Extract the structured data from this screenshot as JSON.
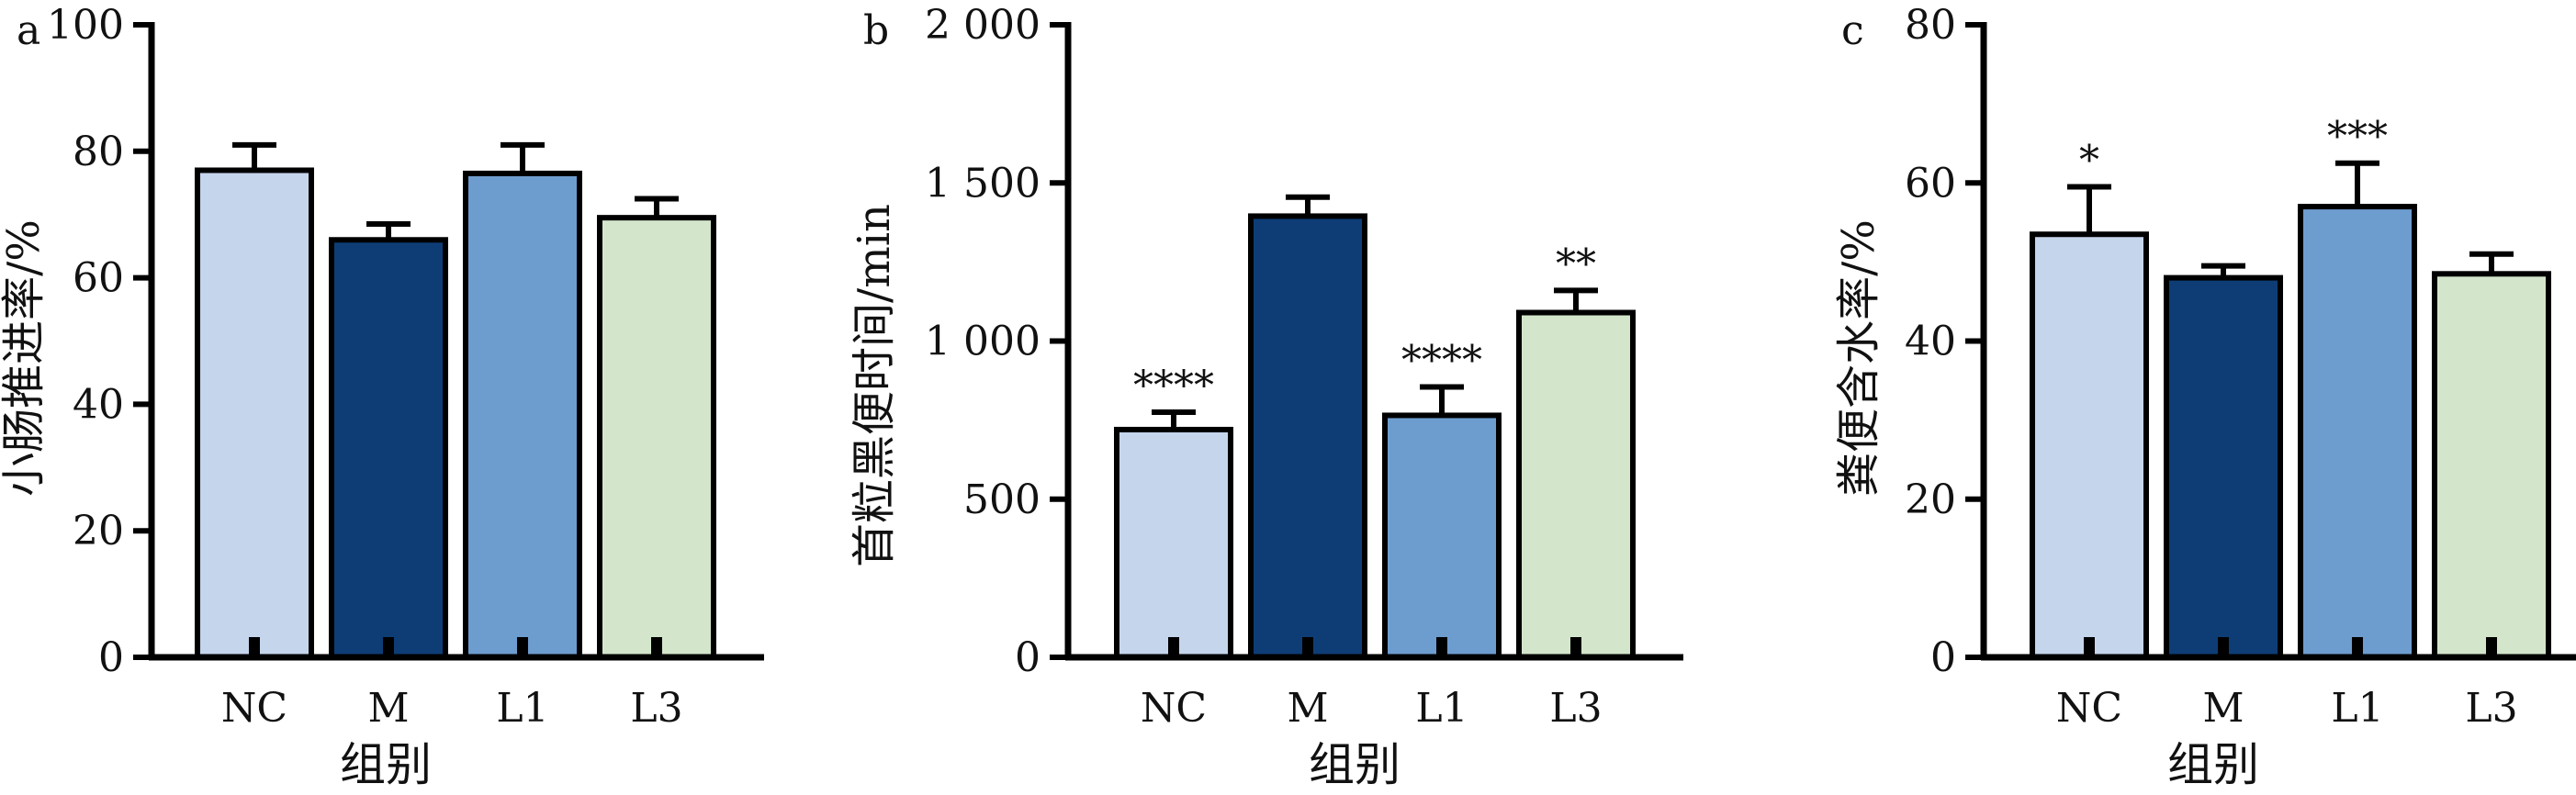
{
  "chart_data": [
    {
      "type": "bar",
      "panel": "a",
      "categories": [
        "NC",
        "M",
        "L1",
        "L3"
      ],
      "values": [
        77,
        66,
        76.5,
        69.5
      ],
      "errors": [
        4,
        2.5,
        4.5,
        3
      ],
      "significance": [
        "",
        "",
        "",
        ""
      ],
      "ylabel": "小肠推进率/%",
      "xlabel": "组别",
      "ylim": [
        0,
        100
      ],
      "yticks": [
        "0",
        "20",
        "40",
        "60",
        "80",
        "100"
      ],
      "ytick_values": [
        0,
        20,
        40,
        60,
        80,
        100
      ],
      "bar_colors": [
        "#c5d5ec",
        "#0e3d76",
        "#6d9ccf",
        "#d3e6cb"
      ]
    },
    {
      "type": "bar",
      "panel": "b",
      "categories": [
        "NC",
        "M",
        "L1",
        "L3"
      ],
      "values": [
        720,
        1395,
        765,
        1090
      ],
      "errors": [
        55,
        60,
        90,
        70
      ],
      "significance": [
        "****",
        "",
        "****",
        "**"
      ],
      "ylabel": "首粒黑便时间/min",
      "xlabel": "组别",
      "ylim": [
        0,
        2000
      ],
      "yticks": [
        "0",
        "500",
        "1 000",
        "1 500",
        "2 000"
      ],
      "ytick_values": [
        0,
        500,
        1000,
        1500,
        2000
      ],
      "bar_colors": [
        "#c5d5ec",
        "#0e3d76",
        "#6d9ccf",
        "#d3e6cb"
      ]
    },
    {
      "type": "bar",
      "panel": "c",
      "categories": [
        "NC",
        "M",
        "L1",
        "L3"
      ],
      "values": [
        53.5,
        48,
        57,
        48.5
      ],
      "errors": [
        6,
        1.5,
        5.5,
        2.5
      ],
      "significance": [
        "*",
        "",
        "***",
        ""
      ],
      "ylabel": "粪便含水率/%",
      "xlabel": "组别",
      "ylim": [
        0,
        80
      ],
      "yticks": [
        "0",
        "20",
        "40",
        "60",
        "80"
      ],
      "ytick_values": [
        0,
        20,
        40,
        60,
        80
      ],
      "bar_colors": [
        "#c5d5ec",
        "#0e3d76",
        "#6d9ccf",
        "#d3e6cb"
      ]
    }
  ]
}
